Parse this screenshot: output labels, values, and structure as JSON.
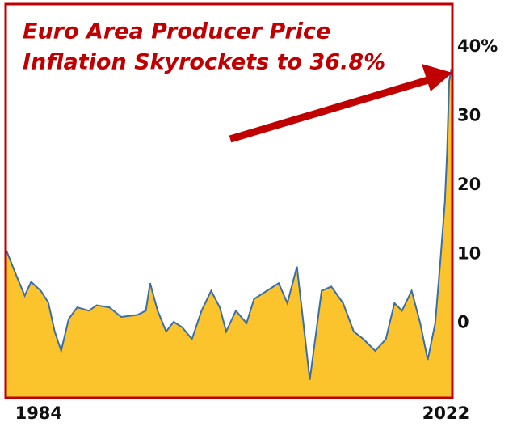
{
  "chart_data": {
    "type": "area",
    "title": [
      "Euro Area Producer Price",
      "Inflation Skyrockets to 36.8%"
    ],
    "x": [
      1981.0,
      1981.9,
      1982.7,
      1983.3,
      1984.2,
      1984.9,
      1985.5,
      1986.1,
      1986.8,
      1987.6,
      1988.7,
      1989.4,
      1990.6,
      1991.7,
      1993.2,
      1994.0,
      1994.4,
      1995.1,
      1995.9,
      1996.6,
      1997.4,
      1998.3,
      1999.2,
      2000.1,
      2000.9,
      2001.5,
      2002.4,
      2003.4,
      2004.1,
      2005.3,
      2006.4,
      2007.2,
      2008.1,
      2008.7,
      2009.3,
      2009.8,
      2010.4,
      2011.3,
      2012.4,
      2013.4,
      2014.3,
      2015.4,
      2016.4,
      2017.2,
      2017.9,
      2018.8,
      2019.6,
      2020.3,
      2021.0,
      2021.5,
      2021.9,
      2022.1,
      2022.3,
      2022.5
    ],
    "series": [
      {
        "color": "#3a6ea8",
        "fill": "#fcc42c",
        "values": [
          10.5,
          7,
          4,
          6,
          4.7,
          3,
          -1.2,
          -4,
          0.6,
          2.3,
          1.8,
          2.6,
          2.3,
          0.9,
          1.2,
          1.8,
          5.8,
          1.8,
          -1.2,
          0.2,
          -0.6,
          -2.3,
          1.8,
          4.7,
          2.3,
          -1.2,
          1.8,
          0,
          3.5,
          4.7,
          5.8,
          2.9,
          8.2,
          0,
          -8.2,
          -2.3,
          4.7,
          5.3,
          2.9,
          -1.2,
          -2.3,
          -4,
          -2.3,
          2.9,
          1.8,
          4.7,
          0,
          -5.3,
          0,
          9.4,
          17.5,
          24.6,
          35,
          36.8
        ]
      }
    ],
    "xlim": [
      1981,
      2022.6
    ],
    "xticks": [
      1984,
      2022
    ],
    "ylim": [
      -10.8,
      46.2
    ],
    "yticks": [
      {
        "value": 40,
        "label": "40%"
      },
      30,
      20,
      10,
      0
    ]
  }
}
